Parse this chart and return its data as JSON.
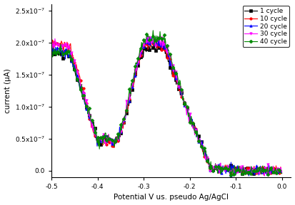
{
  "title": "",
  "xlabel": "Potential V us. pseudo Ag/AgCl",
  "ylabel": "current (μA)",
  "xlim": [
    -0.5,
    0.02
  ],
  "ylim": [
    -1e-08,
    2.6e-07
  ],
  "yticks": [
    0.0,
    5e-08,
    1e-07,
    1.5e-07,
    2e-07,
    2.5e-07
  ],
  "xticks": [
    -0.5,
    -0.4,
    -0.3,
    -0.2,
    -0.1,
    0.0
  ],
  "background_color": "#ffffff",
  "series": [
    {
      "label": "1 cycle",
      "color": "#000000",
      "marker": "s",
      "lw": 0.8
    },
    {
      "label": "10 cycle",
      "color": "#ff0000",
      "marker": "o",
      "lw": 0.8
    },
    {
      "label": "20 cycle",
      "color": "#0000ff",
      "marker": "^",
      "lw": 0.8
    },
    {
      "label": "30 cycle",
      "color": "#ff00ff",
      "marker": "v",
      "lw": 0.8
    },
    {
      "label": "40 cycle",
      "color": "#008800",
      "marker": "D",
      "lw": 0.8
    }
  ],
  "legend_loc": "upper right",
  "legend_fontsize": 6.5,
  "axis_fontsize": 7.5,
  "tick_fontsize": 6.5
}
